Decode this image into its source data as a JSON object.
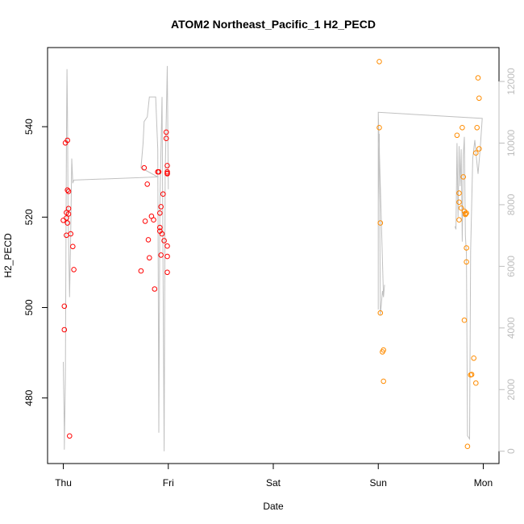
{
  "chart_data": {
    "type": "scatter",
    "title": "ATOM2 Northeast_Pacific_1 H2_PECD",
    "xlabel": "Date",
    "ylabel": "H2_PECD",
    "x_axis": {
      "unit": "days from Thu",
      "ticks": [
        {
          "label": "Thu",
          "value": 0
        },
        {
          "label": "Fri",
          "value": 1
        },
        {
          "label": "Sat",
          "value": 2
        },
        {
          "label": "Sun",
          "value": 3
        },
        {
          "label": "Mon",
          "value": 4
        }
      ],
      "range": [
        -0.15,
        4.15
      ]
    },
    "y_axis_left": {
      "ticks": [
        480,
        500,
        520,
        540
      ],
      "range": [
        465.5,
        557.5
      ]
    },
    "y_axis_right": {
      "ticks": [
        0,
        2000,
        4000,
        6000,
        8000,
        10000,
        12000
      ],
      "range": [
        -400,
        13100
      ],
      "color": "#bdbdbd"
    },
    "series": [
      {
        "color": "#ff0000",
        "points": [
          [
            0.0,
            519.3
          ],
          [
            0.01,
            500.3
          ],
          [
            0.01,
            495.1
          ],
          [
            0.02,
            536.4
          ],
          [
            0.03,
            521.0
          ],
          [
            0.03,
            516.0
          ],
          [
            0.03,
            519.8
          ],
          [
            0.04,
            518.7
          ],
          [
            0.04,
            537.0
          ],
          [
            0.04,
            526.0
          ],
          [
            0.05,
            520.7
          ],
          [
            0.05,
            521.9
          ],
          [
            0.05,
            525.7
          ],
          [
            0.06,
            471.6
          ],
          [
            0.07,
            516.3
          ],
          [
            0.09,
            513.5
          ],
          [
            0.1,
            508.4
          ],
          [
            0.74,
            508.1
          ],
          [
            0.77,
            530.9
          ],
          [
            0.78,
            519.1
          ],
          [
            0.8,
            527.3
          ],
          [
            0.81,
            515.0
          ],
          [
            0.82,
            511.0
          ],
          [
            0.84,
            520.2
          ],
          [
            0.86,
            519.4
          ],
          [
            0.87,
            504.1
          ],
          [
            0.9,
            530.0
          ],
          [
            0.91,
            530.0
          ],
          [
            0.92,
            517.7
          ],
          [
            0.92,
            516.9
          ],
          [
            0.92,
            520.9
          ],
          [
            0.93,
            522.3
          ],
          [
            0.93,
            511.6
          ],
          [
            0.94,
            516.3
          ],
          [
            0.95,
            525.1
          ],
          [
            0.96,
            514.8
          ],
          [
            0.98,
            538.8
          ],
          [
            0.98,
            537.4
          ],
          [
            0.99,
            531.4
          ],
          [
            0.99,
            530.0
          ],
          [
            0.99,
            529.6
          ],
          [
            0.99,
            529.7
          ],
          [
            0.99,
            513.6
          ],
          [
            0.99,
            511.3
          ],
          [
            0.99,
            507.8
          ]
        ]
      },
      {
        "color": "#ff8c00",
        "points": [
          [
            3.01,
            554.4
          ],
          [
            3.01,
            539.8
          ],
          [
            3.02,
            518.7
          ],
          [
            3.02,
            498.8
          ],
          [
            3.04,
            490.2
          ],
          [
            3.05,
            490.6
          ],
          [
            3.05,
            483.7
          ],
          [
            3.75,
            538.1
          ],
          [
            3.77,
            525.3
          ],
          [
            3.77,
            523.3
          ],
          [
            3.77,
            519.4
          ],
          [
            3.79,
            522.0
          ],
          [
            3.8,
            539.8
          ],
          [
            3.81,
            528.9
          ],
          [
            3.82,
            497.2
          ],
          [
            3.82,
            521.3
          ],
          [
            3.83,
            520.8
          ],
          [
            3.83,
            520.6
          ],
          [
            3.84,
            513.2
          ],
          [
            3.84,
            510.1
          ],
          [
            3.84,
            520.9
          ],
          [
            3.85,
            469.3
          ],
          [
            3.88,
            485.1
          ],
          [
            3.89,
            485.2
          ],
          [
            3.91,
            488.8
          ],
          [
            3.93,
            483.3
          ],
          [
            3.93,
            534.2
          ],
          [
            3.94,
            539.8
          ],
          [
            3.95,
            550.8
          ],
          [
            3.96,
            535.1
          ],
          [
            3.96,
            546.3
          ]
        ]
      },
      {
        "type": "line",
        "axis": "right",
        "color": "#c0c0c0",
        "points": [
          [
            0.0,
            2900
          ],
          [
            0.01,
            600
          ],
          [
            0.01,
            50
          ],
          [
            0.02,
            2400
          ],
          [
            0.03,
            10000
          ],
          [
            0.035,
            12400
          ],
          [
            0.04,
            11000
          ],
          [
            0.045,
            7800
          ],
          [
            0.05,
            7000
          ],
          [
            0.06,
            5000
          ],
          [
            0.07,
            7000
          ],
          [
            0.08,
            9500
          ],
          [
            0.09,
            8700
          ],
          [
            0.1,
            8800
          ],
          [
            0.9,
            8900
          ],
          [
            0.74,
            9200
          ],
          [
            0.76,
            10000
          ],
          [
            0.77,
            10700
          ],
          [
            0.8,
            10850
          ],
          [
            0.82,
            11500
          ],
          [
            0.88,
            11500
          ],
          [
            0.9,
            9800
          ],
          [
            0.91,
            600
          ],
          [
            0.92,
            8000
          ],
          [
            0.94,
            11500
          ],
          [
            0.96,
            0
          ],
          [
            0.97,
            9000
          ],
          [
            0.99,
            12500
          ],
          [
            1.0,
            8500
          ]
        ]
      },
      {
        "type": "line",
        "axis": "right",
        "color": "#c0c0c0",
        "points": [
          [
            3.0,
            11000
          ],
          [
            3.0,
            4600
          ],
          [
            3.0,
            8100
          ],
          [
            3.01,
            10300
          ],
          [
            3.02,
            4400
          ],
          [
            3.03,
            4800
          ],
          [
            3.04,
            5200
          ],
          [
            3.05,
            5000
          ],
          [
            3.06,
            5400
          ],
          [
            3.05,
            5000
          ],
          [
            3.0,
            11000
          ],
          [
            3.99,
            10800
          ],
          [
            3.97,
            9800
          ],
          [
            3.95,
            9000
          ],
          [
            3.93,
            9700
          ],
          [
            3.92,
            10100
          ],
          [
            3.9,
            9500
          ],
          [
            3.88,
            6500
          ],
          [
            3.87,
            400
          ],
          [
            3.85,
            500
          ],
          [
            3.84,
            6400
          ],
          [
            3.83,
            7000
          ],
          [
            3.82,
            10200
          ],
          [
            3.81,
            9600
          ],
          [
            3.8,
            6800
          ],
          [
            3.79,
            9800
          ],
          [
            3.78,
            8600
          ],
          [
            3.77,
            9900
          ],
          [
            3.76,
            7600
          ],
          [
            3.75,
            10000
          ],
          [
            3.74,
            7200
          ],
          [
            3.73,
            7300
          ]
        ]
      }
    ]
  }
}
